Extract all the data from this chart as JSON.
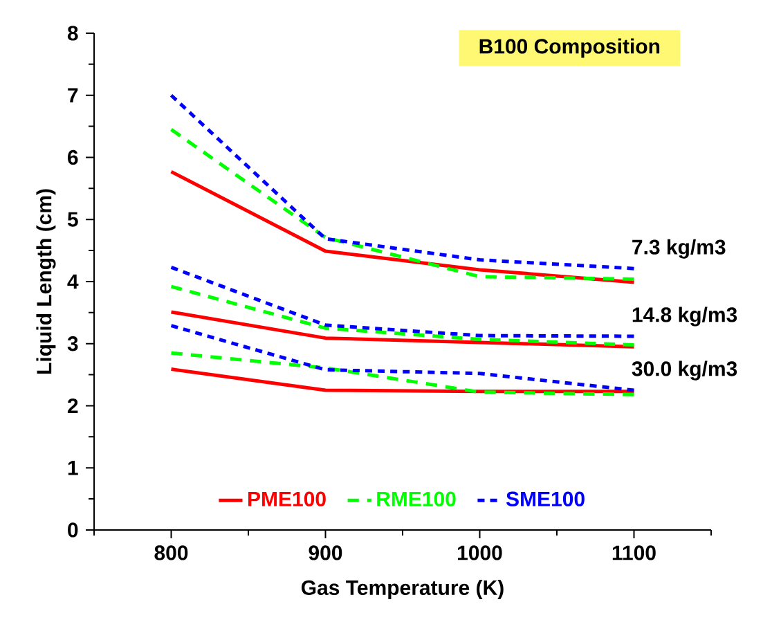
{
  "chart_data": {
    "type": "line",
    "title": "B100 Composition",
    "xlabel": "Gas Temperature (K)",
    "ylabel": "Liquid Length (cm)",
    "x": [
      800,
      900,
      1000,
      1100
    ],
    "xlim": [
      750,
      1150
    ],
    "ylim": [
      0,
      8
    ],
    "xticks": [
      {
        "value": 750,
        "label": null
      },
      800,
      {
        "value": 850,
        "label": null
      },
      900,
      {
        "value": 950,
        "label": null
      },
      1000,
      {
        "value": 1050,
        "label": null
      },
      1100,
      {
        "value": 1150,
        "label": null
      }
    ],
    "yticks": [
      0,
      {
        "value": 0.5,
        "label": null
      },
      1,
      {
        "value": 1.5,
        "label": null
      },
      2,
      {
        "value": 2.5,
        "label": null
      },
      3,
      {
        "value": 3.5,
        "label": null
      },
      4,
      {
        "value": 4.5,
        "label": null
      },
      5,
      {
        "value": 5.5,
        "label": null
      },
      6,
      {
        "value": 6.5,
        "label": null
      },
      7,
      {
        "value": 7.5,
        "label": null
      },
      8
    ],
    "series": [
      {
        "name": "PME100",
        "color": "#ff0000",
        "line_style": "solid",
        "values": [
          5.77,
          4.49,
          4.19,
          3.99
        ]
      },
      {
        "name": "RME100",
        "color": "#00ff00",
        "line_style": "dashed",
        "values": [
          6.45,
          4.71,
          4.08,
          4.04
        ]
      },
      {
        "name": "SME100",
        "color": "#0000ff",
        "line_style": "dotted",
        "values": [
          7.0,
          4.69,
          4.35,
          4.21
        ]
      },
      {
        "color": "#ff0000",
        "line_style": "solid",
        "values": [
          3.51,
          3.09,
          3.02,
          2.95
        ]
      },
      {
        "color": "#00ff00",
        "line_style": "dashed",
        "values": [
          3.92,
          3.25,
          3.07,
          2.98
        ]
      },
      {
        "color": "#0000ff",
        "line_style": "dotted",
        "values": [
          4.23,
          3.3,
          3.13,
          3.12
        ]
      },
      {
        "color": "#ff0000",
        "line_style": "solid",
        "values": [
          2.59,
          2.25,
          2.23,
          2.23
        ]
      },
      {
        "color": "#00ff00",
        "line_style": "dashed",
        "values": [
          2.85,
          2.61,
          2.22,
          2.18
        ]
      },
      {
        "color": "#0000ff",
        "line_style": "dotted",
        "values": [
          3.29,
          2.58,
          2.52,
          2.25
        ]
      }
    ],
    "annotations": [
      "7.3 kg/m3",
      "14.8 kg/m3",
      "30.0 kg/m3"
    ],
    "legend": "bottom",
    "grid": false,
    "marker": "none"
  }
}
